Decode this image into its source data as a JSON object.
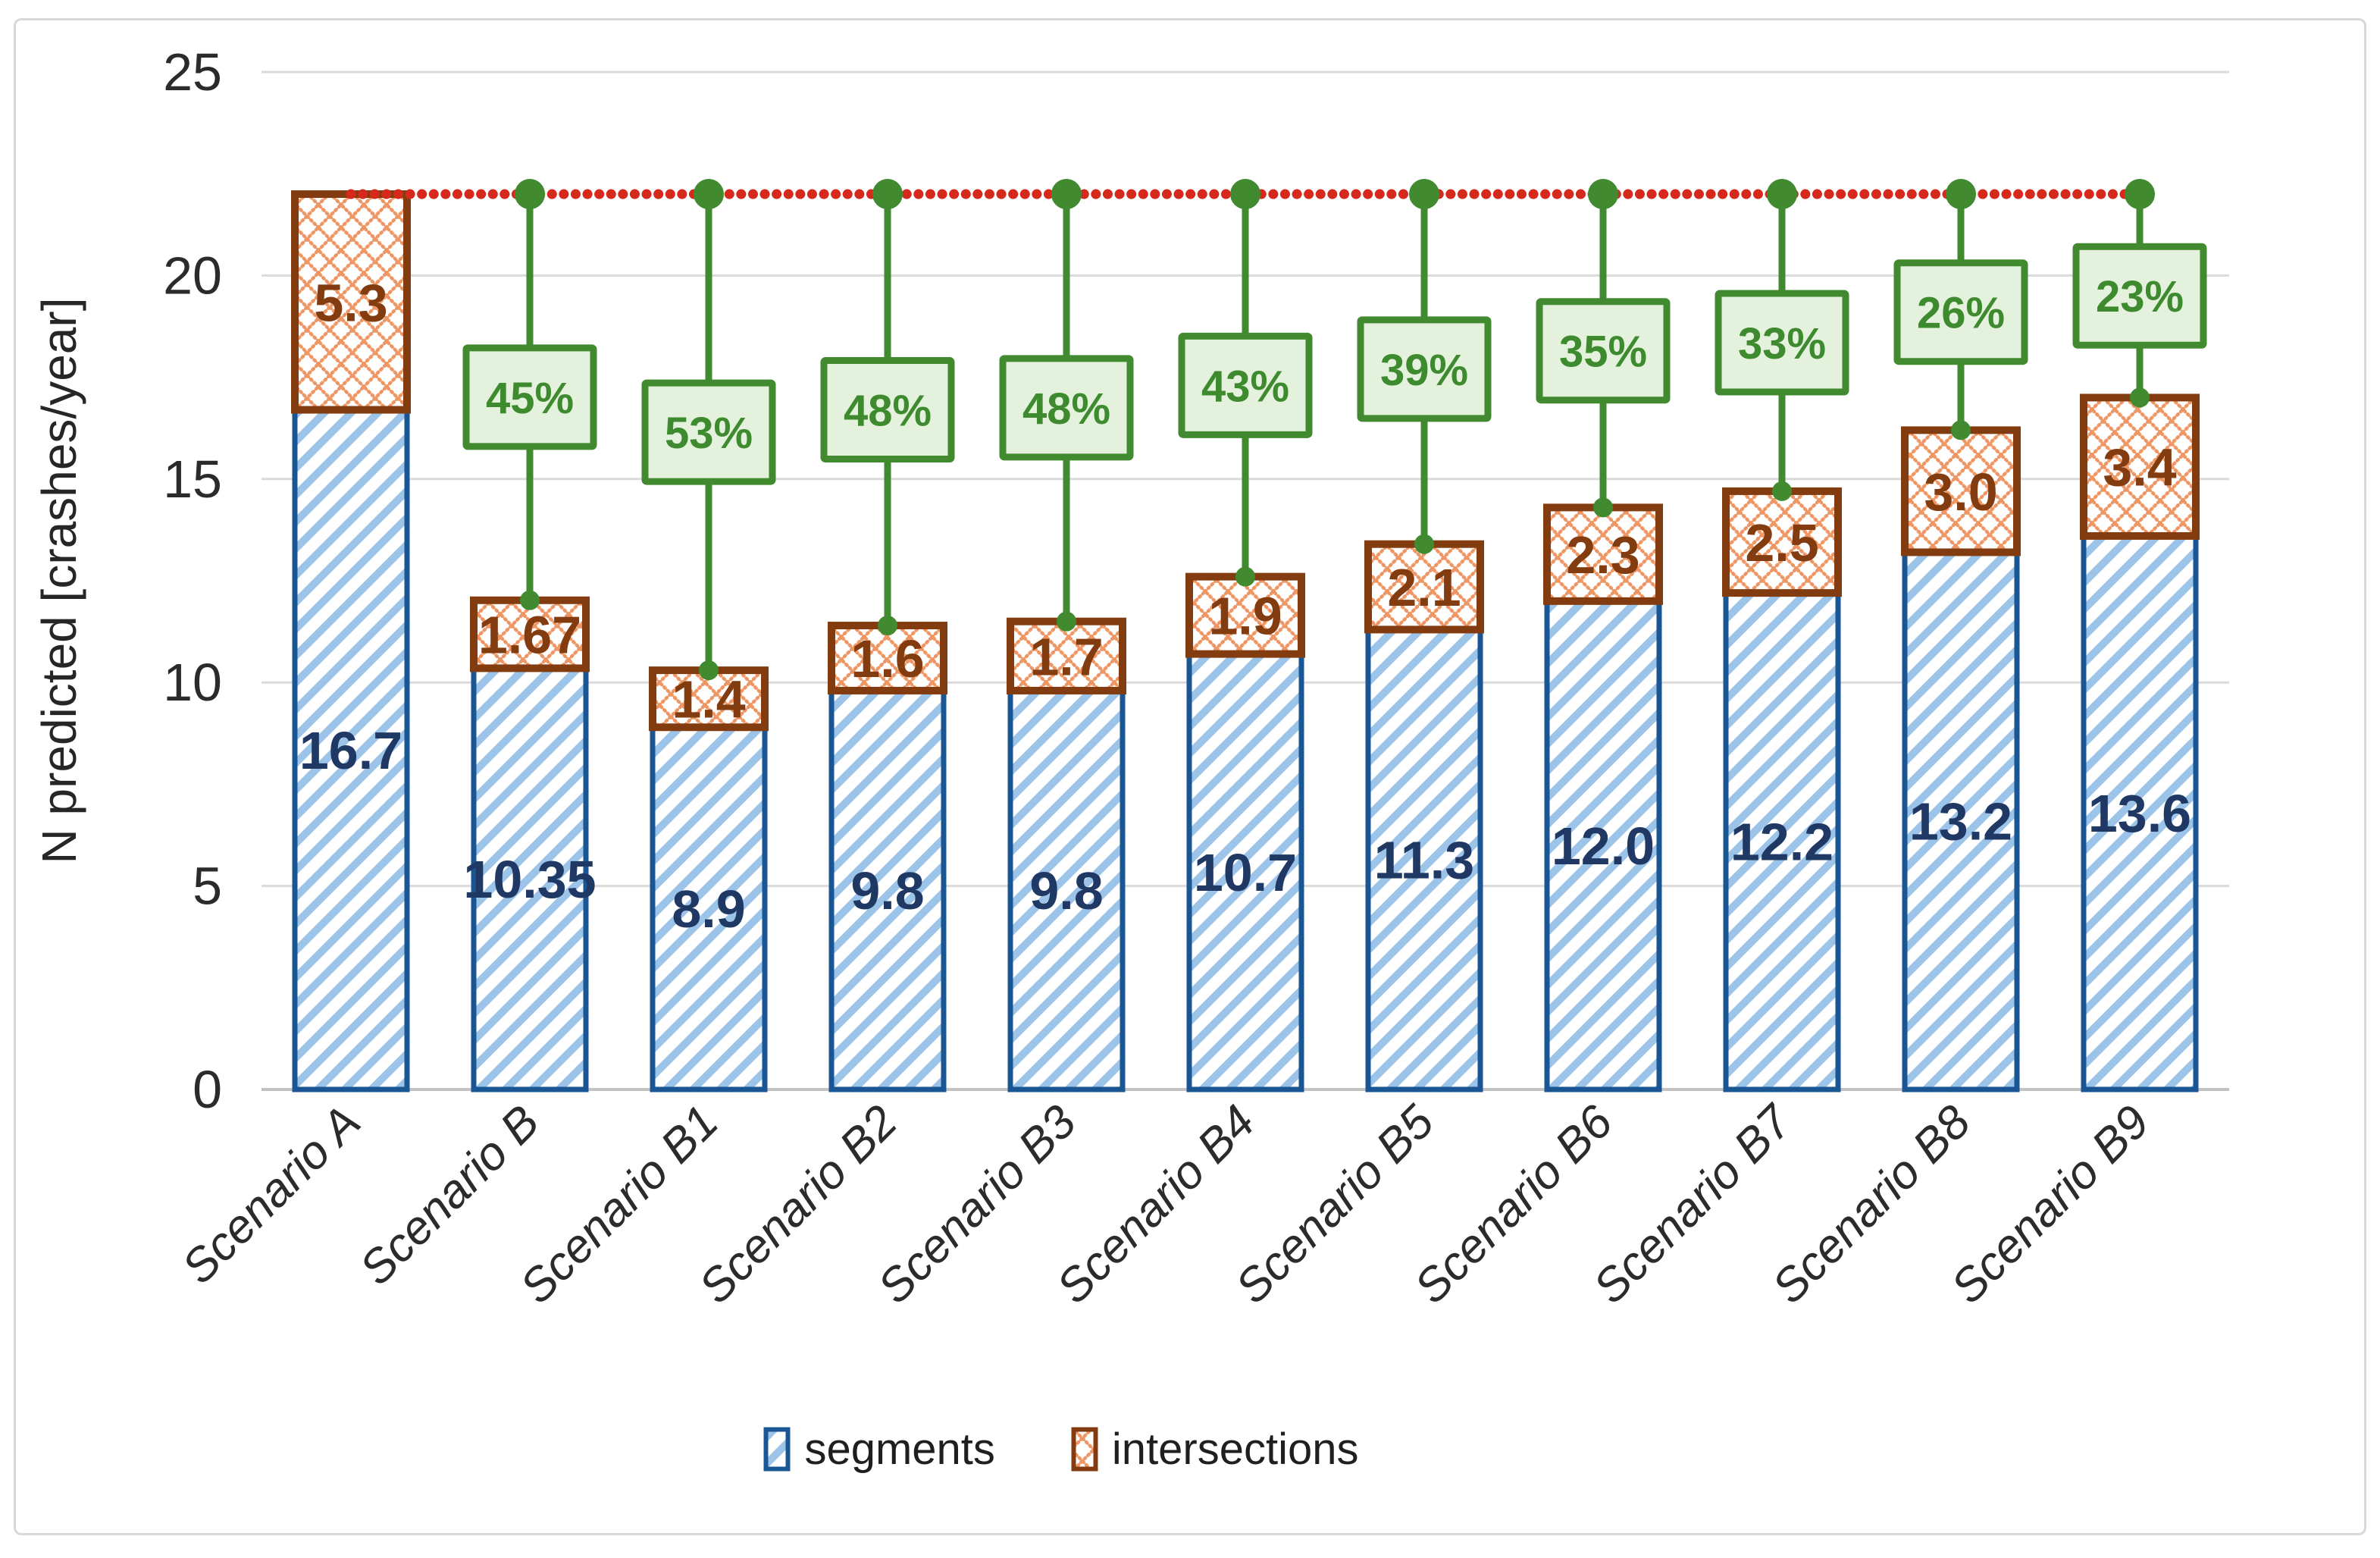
{
  "chart_data": {
    "type": "bar",
    "stacked": true,
    "title": "",
    "xlabel": "",
    "ylabel": "N predicted [crashes/year]",
    "ylim": [
      0,
      25
    ],
    "yticks": [
      0,
      5,
      10,
      15,
      20,
      25
    ],
    "grid": "horizontal",
    "legend_position": "bottom",
    "categories": [
      "Scenario A",
      "Scenario B",
      "Scenario B1",
      "Scenario B2",
      "Scenario B3",
      "Scenario B4",
      "Scenario B5",
      "Scenario B6",
      "Scenario B7",
      "Scenario B8",
      "Scenario B9"
    ],
    "series": [
      {
        "name": "segments",
        "values": [
          16.7,
          10.35,
          8.9,
          9.8,
          9.8,
          10.7,
          11.3,
          12.0,
          12.2,
          13.2,
          13.6
        ],
        "labels": [
          "16.7",
          "10.35",
          "8.9",
          "9.8",
          "9.8",
          "10.7",
          "11.3",
          "12.0",
          "12.2",
          "13.2",
          "13.6"
        ],
        "hatch": "diagonal-stripes",
        "hatch_color": "#9cc3e8",
        "border_color": "#1a5694",
        "label_color": "#1f3864"
      },
      {
        "name": "intersections",
        "values": [
          5.3,
          1.67,
          1.4,
          1.6,
          1.7,
          1.9,
          2.1,
          2.3,
          2.5,
          3.0,
          3.4
        ],
        "labels": [
          "5.3",
          "1.67",
          "1.4",
          "1.6",
          "1.7",
          "1.9",
          "2.1",
          "2.3",
          "2.5",
          "3.0",
          "3.4"
        ],
        "hatch": "crosshatch-diamond",
        "hatch_color": "#ef9764",
        "border_color": "#833c10",
        "label_color": "#833c10"
      }
    ],
    "stack_totals": [
      22.0,
      12.02,
      10.3,
      11.4,
      11.5,
      12.6,
      13.4,
      14.3,
      14.7,
      16.2,
      17.0
    ],
    "reference_line": {
      "value": 22.0,
      "style": "dotted",
      "color": "#d5291c",
      "meaning": "Scenario A total level"
    },
    "reduction_markers": {
      "from_category_index": 1,
      "labels": [
        "45%",
        "53%",
        "48%",
        "48%",
        "43%",
        "39%",
        "35%",
        "33%",
        "26%",
        "23%"
      ],
      "line_color": "#418a2f",
      "dot_color": "#418a2f",
      "box_fill": "#e4f1dc",
      "box_border": "#418a2f",
      "text_color": "#3e8a2e"
    }
  },
  "axes": {
    "tick_color": "#2b2b2b",
    "gridline_color": "#dadada",
    "axisline_color": "#c2c2c2"
  }
}
